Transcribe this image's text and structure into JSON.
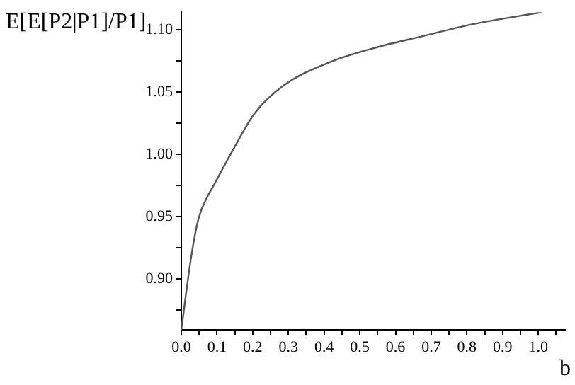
{
  "chart_data": {
    "type": "line",
    "ylabel": "E[E[P2|P1]/P1]",
    "xlabel": "b",
    "grid": false,
    "legend": false,
    "marker": "none",
    "line_style": "solid",
    "x": [
      0,
      0.028,
      0.048,
      0.075,
      0.087,
      0.14,
      0.206,
      0.286,
      0.417,
      0.55,
      0.68,
      0.81,
      1.01
    ],
    "series": [
      {
        "color": "#555555",
        "values": [
          0.859,
          0.918,
          0.948,
          0.967,
          0.973,
          1.001,
          1.033,
          1.055,
          1.074,
          1.086,
          1.095,
          1.104,
          1.114
        ]
      }
    ],
    "xlim": [
      0,
      1.075
    ],
    "ylim": [
      0.859,
      1.114
    ],
    "xticks": [
      {
        "value": 0,
        "label": "0.0"
      },
      {
        "value": 0.05,
        "label": null
      },
      0.1,
      {
        "value": 0.15,
        "label": null
      },
      0.2,
      {
        "value": 0.25,
        "label": null
      },
      0.3,
      {
        "value": 0.35,
        "label": null
      },
      0.4,
      {
        "value": 0.45,
        "label": null
      },
      0.5,
      {
        "value": 0.55,
        "label": null
      },
      0.6,
      {
        "value": 0.65,
        "label": null
      },
      0.7,
      {
        "value": 0.75,
        "label": null
      },
      0.8,
      {
        "value": 0.85,
        "label": null
      },
      0.9,
      {
        "value": 0.95,
        "label": null
      },
      {
        "value": 1,
        "label": "1.0"
      },
      {
        "value": 1.05,
        "label": null
      }
    ],
    "yticks": [
      {
        "value": 0.875,
        "label": null
      },
      {
        "value": 0.9,
        "label": "0.90"
      },
      {
        "value": 0.925,
        "label": null
      },
      0.95,
      {
        "value": 0.975,
        "label": null
      },
      {
        "value": 1,
        "label": "1.00"
      },
      {
        "value": 1.025,
        "label": null
      },
      1.05,
      {
        "value": 1.075,
        "label": null
      },
      {
        "value": 1.1,
        "label": "1.10"
      }
    ]
  }
}
